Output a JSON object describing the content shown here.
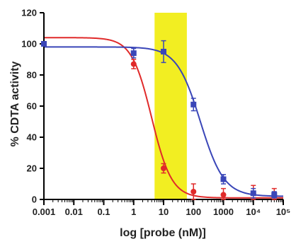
{
  "chart_data": {
    "type": "scatter",
    "title": "",
    "xlabel": "log [probe (nM)]",
    "ylabel": "% CDTA  activity",
    "xscale": "log",
    "xlim": [
      0.001,
      100000
    ],
    "ylim": [
      0,
      120
    ],
    "yticks": [
      0,
      20,
      40,
      60,
      80,
      100,
      120
    ],
    "xtick_labels": [
      "0.001",
      "0.01",
      "0.1",
      "1",
      "10",
      "100",
      "1000",
      "10⁴",
      "10⁵"
    ],
    "xtick_values": [
      0.001,
      0.01,
      0.1,
      1,
      10,
      100,
      1000,
      10000,
      100000
    ],
    "highlight_band": {
      "x_range": [
        5,
        60
      ],
      "color": "#f2ee22"
    },
    "legend": "none",
    "grid": false,
    "series": [
      {
        "color": "#e02a2a",
        "marker": "circle",
        "points": [
          {
            "x": 1,
            "y": 87,
            "err": 3
          },
          {
            "x": 10,
            "y": 20,
            "err": 3
          },
          {
            "x": 100,
            "y": 5,
            "err": 5
          },
          {
            "x": 1000,
            "y": 3,
            "err": 4
          },
          {
            "x": 10000,
            "y": 4,
            "err": 5
          },
          {
            "x": 50000,
            "y": 3,
            "err": 4
          }
        ],
        "fit": {
          "top": 104,
          "bottom": 1,
          "ic50": 4,
          "hill": 1.3
        }
      },
      {
        "color": "#3a46b8",
        "marker": "square",
        "points": [
          {
            "x": 0.001,
            "y": 100,
            "err": 1
          },
          {
            "x": 1,
            "y": 94,
            "err": 3
          },
          {
            "x": 10,
            "y": 95,
            "err": 7
          },
          {
            "x": 100,
            "y": 61,
            "err": 4
          },
          {
            "x": 1000,
            "y": 13,
            "err": 3
          },
          {
            "x": 10000,
            "y": 4,
            "err": 3
          },
          {
            "x": 50000,
            "y": 3,
            "err": 2
          }
        ],
        "fit": {
          "top": 98,
          "bottom": 2,
          "ic50": 170,
          "hill": 1.1
        }
      }
    ]
  }
}
